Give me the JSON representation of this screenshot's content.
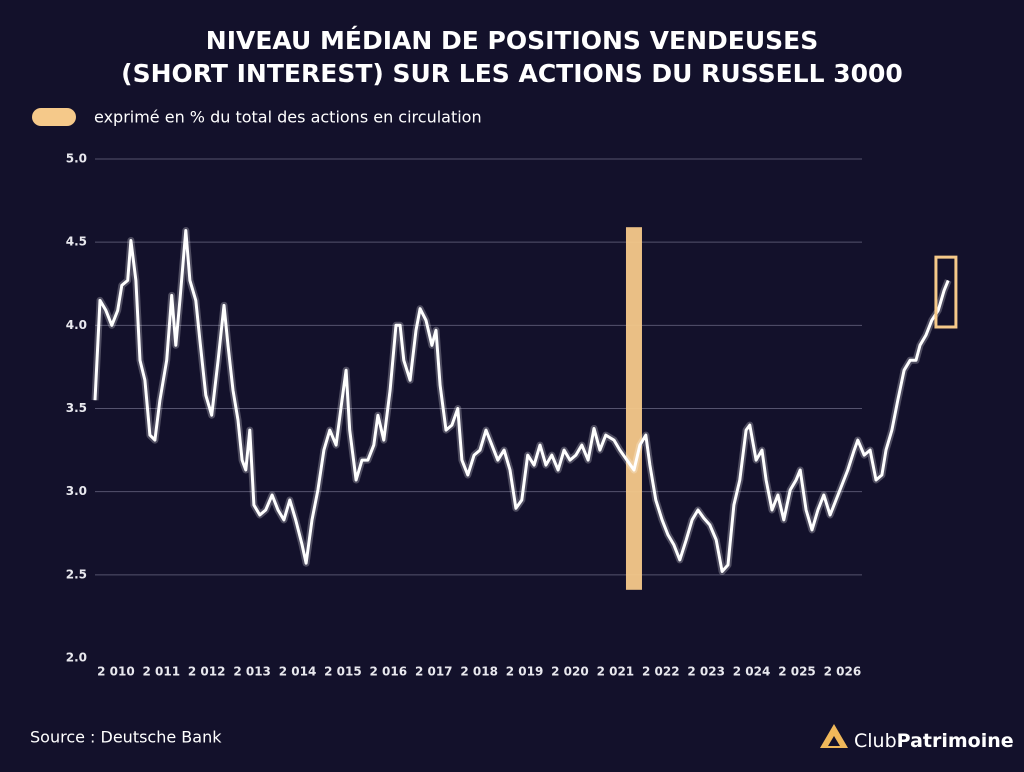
{
  "chart_data": {
    "type": "line",
    "title": [
      "NIVEAU MÉDIAN DE POSITIONS VENDEUSES",
      "(SHORT INTEREST) SUR LES ACTIONS DU RUSSELL 3000"
    ],
    "legend_label": "exprimé en % du total des actions en circulation",
    "legend_color": "#f5c98a",
    "source": "Source : Deutsche Bank",
    "xlim": [
      2009.54,
      2028.59
    ],
    "ylim": [
      2.0,
      5.0
    ],
    "yticks": [
      {
        "value": 2,
        "label": "2.0"
      },
      {
        "value": 2.5,
        "label": "2.5"
      },
      {
        "value": 3,
        "label": "3.0"
      },
      {
        "value": 3.5,
        "label": "3.5"
      },
      {
        "value": 4,
        "label": "4.0"
      },
      {
        "value": 4.5,
        "label": "4.5"
      },
      {
        "value": 5,
        "label": "5.0"
      }
    ],
    "xticks": [
      {
        "value": 2010,
        "label": "2 010"
      },
      {
        "value": 2011,
        "label": "2 011"
      },
      {
        "value": 2012,
        "label": "2 012"
      },
      {
        "value": 2013,
        "label": "2 013"
      },
      {
        "value": 2014,
        "label": "2 014"
      },
      {
        "value": 2015,
        "label": "2 015"
      },
      {
        "value": 2016,
        "label": "2 016"
      },
      {
        "value": 2017,
        "label": "2 017"
      },
      {
        "value": 2018,
        "label": "2 018"
      },
      {
        "value": 2019,
        "label": "2 019"
      },
      {
        "value": 2020,
        "label": "2 020"
      },
      {
        "value": 2021,
        "label": "2 021"
      },
      {
        "value": 2022,
        "label": "2 022"
      },
      {
        "value": 2023,
        "label": "2 023"
      },
      {
        "value": 2024,
        "label": "2 024"
      },
      {
        "value": 2025,
        "label": "2 025"
      },
      {
        "value": 2026,
        "label": "2 026"
      }
    ],
    "grid": true,
    "color": "#ffffff",
    "highlight_band": {
      "x": 2021.41,
      "from": 2.41,
      "to": 4.59
    },
    "end_box": {
      "x": [
        2028.06,
        2028.5
      ],
      "y": [
        3.99,
        4.41
      ]
    },
    "x": [
      2009.54,
      2009.65,
      2009.78,
      2009.91,
      2010.04,
      2010.13,
      2010.26,
      2010.33,
      2010.44,
      2010.53,
      2010.64,
      2010.75,
      2010.86,
      2010.97,
      2011.12,
      2011.23,
      2011.32,
      2011.41,
      2011.54,
      2011.63,
      2011.76,
      2011.85,
      2011.98,
      2012.11,
      2012.25,
      2012.38,
      2012.47,
      2012.58,
      2012.69,
      2012.78,
      2012.86,
      2012.95,
      2013.04,
      2013.17,
      2013.3,
      2013.44,
      2013.57,
      2013.7,
      2013.83,
      2013.96,
      2014.1,
      2014.19,
      2014.32,
      2014.45,
      2014.58,
      2014.71,
      2014.85,
      2014.98,
      2015.07,
      2015.15,
      2015.29,
      2015.42,
      2015.55,
      2015.68,
      2015.77,
      2015.9,
      2016.04,
      2016.17,
      2016.26,
      2016.34,
      2016.48,
      2016.61,
      2016.7,
      2016.83,
      2016.96,
      2017.05,
      2017.14,
      2017.27,
      2017.4,
      2017.53,
      2017.62,
      2017.75,
      2017.89,
      2018.02,
      2018.15,
      2018.28,
      2018.41,
      2018.55,
      2018.68,
      2018.81,
      2018.94,
      2019.07,
      2019.21,
      2019.34,
      2019.47,
      2019.6,
      2019.74,
      2019.87,
      2020.0,
      2020.13,
      2020.26,
      2020.4,
      2020.53,
      2020.66,
      2020.79,
      2020.97,
      2021.1,
      2021.28,
      2021.41,
      2021.54,
      2021.67,
      2021.76,
      2021.89,
      2022.03,
      2022.16,
      2022.29,
      2022.42,
      2022.56,
      2022.69,
      2022.82,
      2022.95,
      2023.08,
      2023.22,
      2023.35,
      2023.48,
      2023.61,
      2023.74,
      2023.88,
      2023.96,
      2024.1,
      2024.23,
      2024.32,
      2024.45,
      2024.58,
      2024.71,
      2024.85,
      2024.98,
      2025.07,
      2025.2,
      2025.33,
      2025.46,
      2025.59,
      2025.73,
      2025.86,
      2025.99,
      2026.12,
      2026.26,
      2026.34,
      2026.48,
      2026.61,
      2026.74,
      2026.87,
      2026.96,
      2027.09,
      2027.22,
      2027.36,
      2027.49,
      2027.62,
      2027.71,
      2027.84,
      2027.97,
      2028.11,
      2028.24,
      2028.33
    ],
    "values": [
      3.55,
      4.15,
      4.09,
      4.0,
      4.09,
      4.24,
      4.27,
      4.51,
      4.27,
      3.79,
      3.67,
      3.34,
      3.31,
      3.55,
      3.79,
      4.18,
      3.88,
      4.15,
      4.57,
      4.27,
      4.15,
      3.91,
      3.58,
      3.46,
      3.79,
      4.12,
      3.88,
      3.61,
      3.43,
      3.19,
      3.13,
      3.37,
      2.92,
      2.86,
      2.89,
      2.98,
      2.89,
      2.83,
      2.95,
      2.83,
      2.68,
      2.57,
      2.83,
      3.01,
      3.25,
      3.37,
      3.28,
      3.55,
      3.73,
      3.37,
      3.07,
      3.19,
      3.19,
      3.28,
      3.46,
      3.31,
      3.61,
      4.0,
      4.0,
      3.79,
      3.67,
      3.97,
      4.1,
      4.03,
      3.88,
      3.97,
      3.64,
      3.37,
      3.4,
      3.5,
      3.19,
      3.1,
      3.22,
      3.25,
      3.37,
      3.28,
      3.19,
      3.25,
      3.13,
      2.9,
      2.95,
      3.22,
      3.16,
      3.28,
      3.16,
      3.22,
      3.13,
      3.25,
      3.19,
      3.22,
      3.28,
      3.19,
      3.38,
      3.25,
      3.34,
      3.31,
      3.25,
      3.18,
      3.13,
      3.28,
      3.34,
      3.16,
      2.95,
      2.83,
      2.74,
      2.68,
      2.59,
      2.71,
      2.83,
      2.89,
      2.84,
      2.8,
      2.71,
      2.52,
      2.56,
      2.92,
      3.07,
      3.37,
      3.4,
      3.19,
      3.25,
      3.07,
      2.89,
      2.98,
      2.83,
      3.01,
      3.07,
      3.13,
      2.89,
      2.77,
      2.89,
      2.98,
      2.86,
      2.95,
      3.04,
      3.13,
      3.25,
      3.31,
      3.22,
      3.25,
      3.07,
      3.1,
      3.25,
      3.37,
      3.55,
      3.73,
      3.79,
      3.79,
      3.88,
      3.94,
      4.03,
      4.09,
      4.21,
      4.27
    ]
  },
  "logo": {
    "light": "Club",
    "bold": "Patrimoine"
  }
}
